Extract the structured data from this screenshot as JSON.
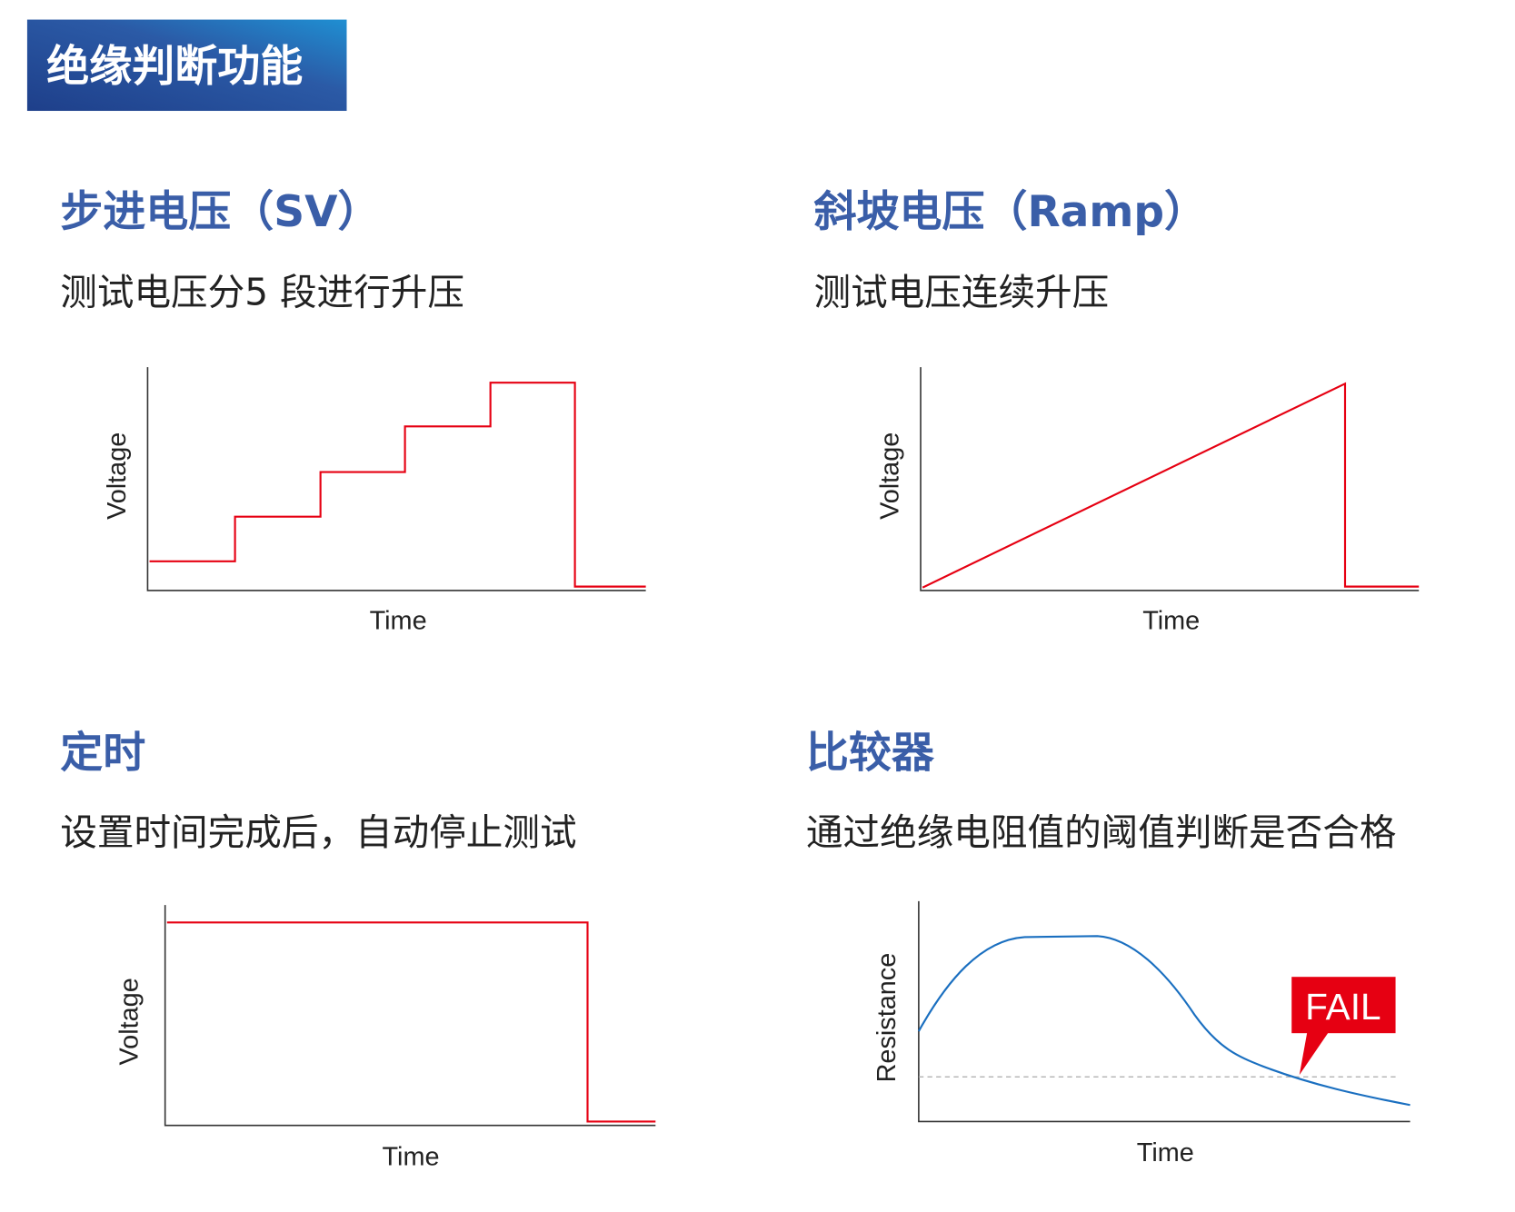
{
  "header": {
    "title": "绝缘判断功能",
    "colors": {
      "from": "#1e3f8a",
      "to": "#2a8fd0"
    }
  },
  "sections": [
    {
      "title": "步进电压（SV）",
      "subtitle": "测试电压分5 段进行升压",
      "ylabel": "Voltage",
      "xlabel": "Time",
      "steps": 5
    },
    {
      "title": "斜坡电压（Ramp）",
      "subtitle": "测试电压连续升压",
      "ylabel": "Voltage",
      "xlabel": "Time"
    },
    {
      "title": "定时",
      "subtitle": "设置时间完成后，自动停止测试",
      "ylabel": "Voltage",
      "xlabel": "Time"
    },
    {
      "title": "比较器",
      "subtitle": "通过绝缘电阻值的阈值判断是否合格",
      "ylabel": "Resistance",
      "xlabel": "Time",
      "badge": "FAIL"
    }
  ],
  "colors": {
    "title": "#3a5ea8",
    "voltage_line": "#e60012",
    "resistance_line": "#1a6fc0",
    "fail_badge": "#e60012",
    "threshold": "#aaaaaa"
  }
}
